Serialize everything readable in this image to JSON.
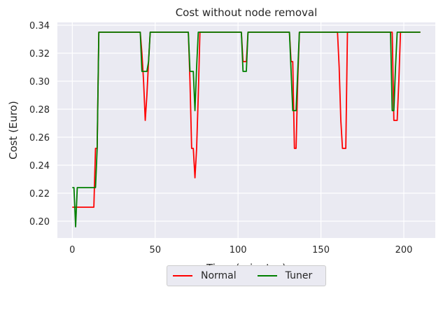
{
  "chart_data": {
    "type": "line",
    "title": "Cost without node removal",
    "xlabel": "Time (minutes)",
    "ylabel": "Cost (Euro)",
    "xlim": [
      -9,
      219
    ],
    "ylim": [
      0.188,
      0.342
    ],
    "xticks": [
      0,
      50,
      100,
      150,
      200
    ],
    "xtick_labels": [
      "0",
      "50",
      "100",
      "150",
      "200"
    ],
    "yticks": [
      0.2,
      0.22,
      0.24,
      0.26,
      0.28,
      0.3,
      0.32,
      0.34
    ],
    "ytick_labels": [
      "0.20",
      "0.22",
      "0.24",
      "0.26",
      "0.28",
      "0.30",
      "0.32",
      "0.34"
    ],
    "grid": true,
    "legend_position": "below-center",
    "background": "#eaeaf2",
    "series": [
      {
        "name": "Normal",
        "color": "#ff0000",
        "x": [
          0,
          1,
          13,
          14,
          15,
          16,
          17,
          41,
          42,
          43,
          44,
          45,
          46,
          47,
          48,
          70,
          71,
          72,
          73,
          74,
          75,
          76,
          77,
          78,
          102,
          103,
          104,
          105,
          106,
          131,
          132,
          133,
          134,
          135,
          136,
          137,
          160,
          161,
          162,
          163,
          164,
          165,
          166,
          193,
          194,
          195,
          196,
          197,
          198,
          210
        ],
        "y": [
          0.21,
          0.21,
          0.21,
          0.252,
          0.252,
          0.335,
          0.335,
          0.335,
          0.32,
          0.3,
          0.272,
          0.29,
          0.314,
          0.335,
          0.335,
          0.335,
          0.3,
          0.252,
          0.252,
          0.231,
          0.252,
          0.29,
          0.335,
          0.335,
          0.335,
          0.314,
          0.314,
          0.314,
          0.335,
          0.335,
          0.314,
          0.314,
          0.252,
          0.252,
          0.3,
          0.335,
          0.335,
          0.31,
          0.272,
          0.252,
          0.252,
          0.252,
          0.335,
          0.335,
          0.272,
          0.272,
          0.272,
          0.3,
          0.335,
          0.335
        ]
      },
      {
        "name": "Tuner",
        "color": "#008000",
        "x": [
          0,
          1,
          2,
          3,
          13,
          14,
          15,
          16,
          17,
          41,
          42,
          43,
          44,
          45,
          46,
          47,
          48,
          70,
          71,
          72,
          73,
          74,
          75,
          76,
          77,
          102,
          103,
          104,
          105,
          106,
          131,
          132,
          133,
          134,
          135,
          136,
          137,
          138,
          160,
          161,
          192,
          193,
          194,
          195,
          196,
          197,
          210
        ],
        "y": [
          0.224,
          0.224,
          0.196,
          0.224,
          0.224,
          0.224,
          0.252,
          0.335,
          0.335,
          0.335,
          0.307,
          0.307,
          0.307,
          0.307,
          0.314,
          0.335,
          0.335,
          0.335,
          0.307,
          0.307,
          0.307,
          0.279,
          0.31,
          0.335,
          0.335,
          0.335,
          0.307,
          0.307,
          0.307,
          0.335,
          0.335,
          0.307,
          0.279,
          0.279,
          0.279,
          0.307,
          0.335,
          0.335,
          0.335,
          0.335,
          0.335,
          0.279,
          0.279,
          0.31,
          0.335,
          0.335,
          0.335
        ]
      }
    ]
  }
}
